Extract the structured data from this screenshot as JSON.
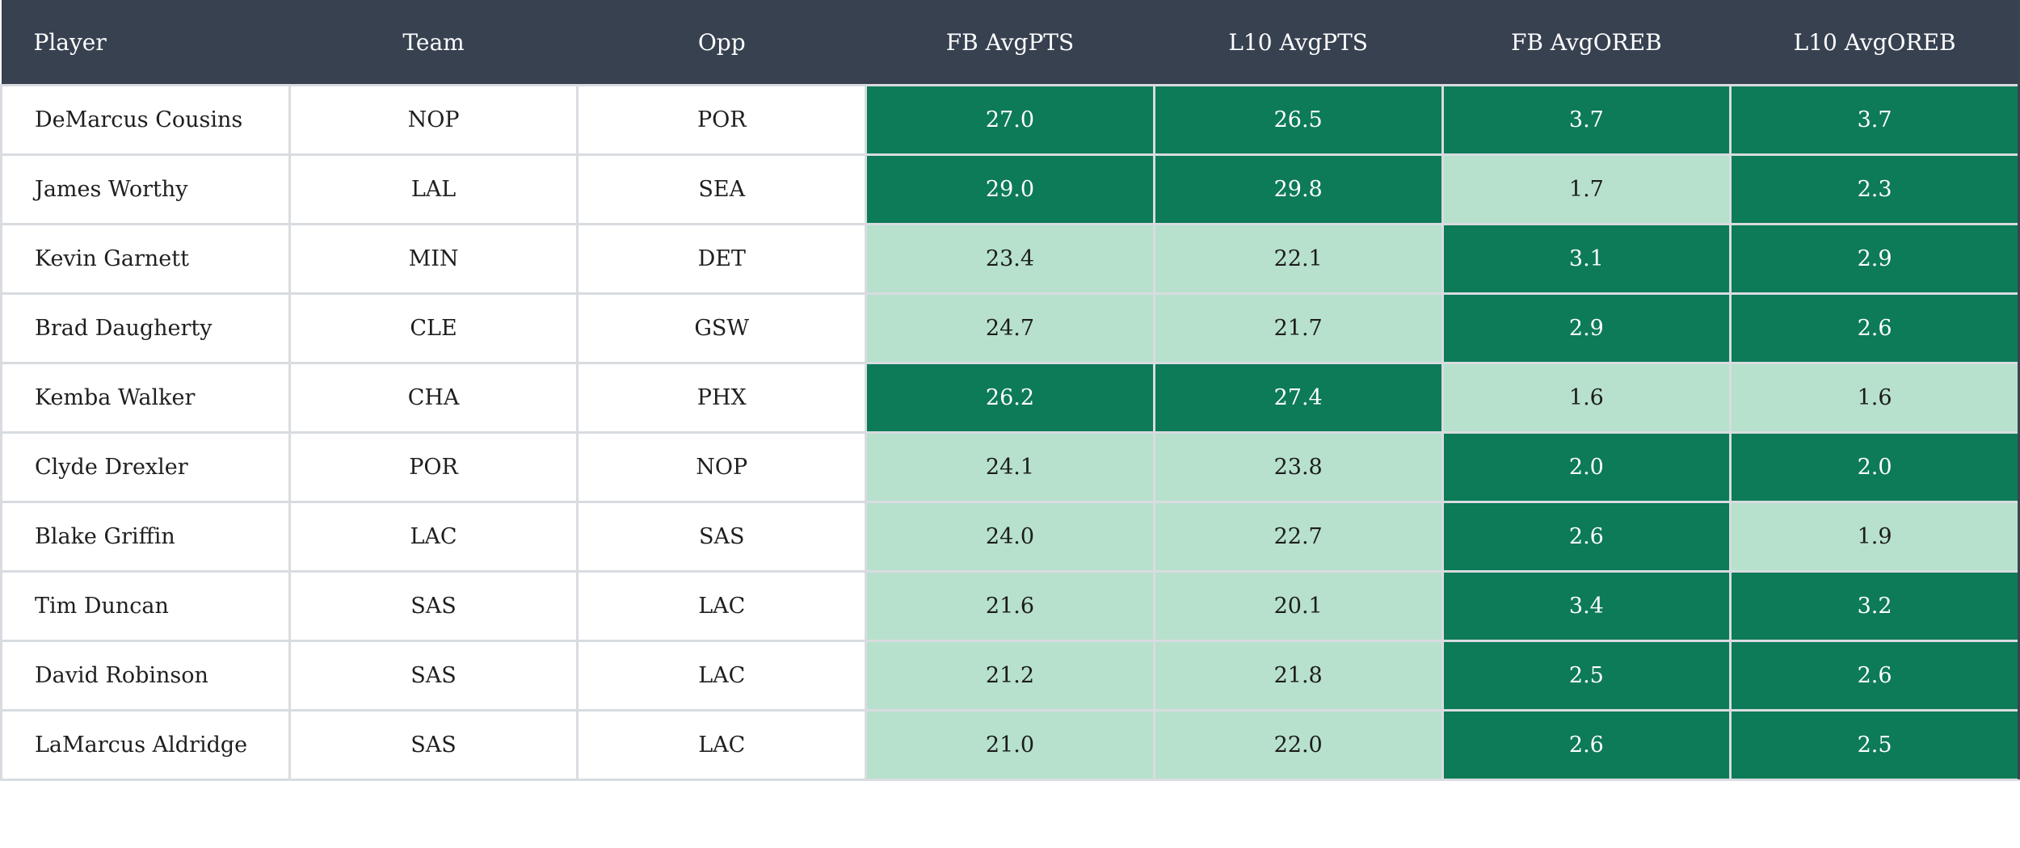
{
  "colors": {
    "header_bg": "#374150",
    "header_text": "#ffffff",
    "stat_high_bg": "#0d7a58",
    "stat_high_text": "#ffffff",
    "stat_low_bg": "#b7e1cd",
    "stat_low_text": "#1c1c1c",
    "cell_border": "#d8dce0",
    "row_bg": "#ffffff"
  },
  "table": {
    "columns": [
      {
        "key": "player",
        "label": "Player",
        "type": "text",
        "align": "left"
      },
      {
        "key": "team",
        "label": "Team",
        "type": "text",
        "align": "center"
      },
      {
        "key": "opp",
        "label": "Opp",
        "type": "text",
        "align": "center"
      },
      {
        "key": "fb_avgpts",
        "label": "FB AvgPTS",
        "type": "stat",
        "align": "center"
      },
      {
        "key": "l10_avgpts",
        "label": "L10 AvgPTS",
        "type": "stat",
        "align": "center"
      },
      {
        "key": "fb_avgoreb",
        "label": "FB AvgOREB",
        "type": "stat",
        "align": "center"
      },
      {
        "key": "l10_avgoreb",
        "label": "L10 AvgOREB",
        "type": "stat",
        "align": "center"
      }
    ],
    "rows": [
      {
        "player": "DeMarcus Cousins",
        "team": "NOP",
        "opp": "POR",
        "fb_avgpts": {
          "value": "27.0",
          "tone": "dark"
        },
        "l10_avgpts": {
          "value": "26.5",
          "tone": "dark"
        },
        "fb_avgoreb": {
          "value": "3.7",
          "tone": "dark"
        },
        "l10_avgoreb": {
          "value": "3.7",
          "tone": "dark"
        }
      },
      {
        "player": "James Worthy",
        "team": "LAL",
        "opp": "SEA",
        "fb_avgpts": {
          "value": "29.0",
          "tone": "dark"
        },
        "l10_avgpts": {
          "value": "29.8",
          "tone": "dark"
        },
        "fb_avgoreb": {
          "value": "1.7",
          "tone": "light"
        },
        "l10_avgoreb": {
          "value": "2.3",
          "tone": "dark"
        }
      },
      {
        "player": "Kevin Garnett",
        "team": "MIN",
        "opp": "DET",
        "fb_avgpts": {
          "value": "23.4",
          "tone": "light"
        },
        "l10_avgpts": {
          "value": "22.1",
          "tone": "light"
        },
        "fb_avgoreb": {
          "value": "3.1",
          "tone": "dark"
        },
        "l10_avgoreb": {
          "value": "2.9",
          "tone": "dark"
        }
      },
      {
        "player": "Brad Daugherty",
        "team": "CLE",
        "opp": "GSW",
        "fb_avgpts": {
          "value": "24.7",
          "tone": "light"
        },
        "l10_avgpts": {
          "value": "21.7",
          "tone": "light"
        },
        "fb_avgoreb": {
          "value": "2.9",
          "tone": "dark"
        },
        "l10_avgoreb": {
          "value": "2.6",
          "tone": "dark"
        }
      },
      {
        "player": "Kemba Walker",
        "team": "CHA",
        "opp": "PHX",
        "fb_avgpts": {
          "value": "26.2",
          "tone": "dark"
        },
        "l10_avgpts": {
          "value": "27.4",
          "tone": "dark"
        },
        "fb_avgoreb": {
          "value": "1.6",
          "tone": "light"
        },
        "l10_avgoreb": {
          "value": "1.6",
          "tone": "light"
        }
      },
      {
        "player": "Clyde Drexler",
        "team": "POR",
        "opp": "NOP",
        "fb_avgpts": {
          "value": "24.1",
          "tone": "light"
        },
        "l10_avgpts": {
          "value": "23.8",
          "tone": "light"
        },
        "fb_avgoreb": {
          "value": "2.0",
          "tone": "dark"
        },
        "l10_avgoreb": {
          "value": "2.0",
          "tone": "dark"
        }
      },
      {
        "player": "Blake Griffin",
        "team": "LAC",
        "opp": "SAS",
        "fb_avgpts": {
          "value": "24.0",
          "tone": "light"
        },
        "l10_avgpts": {
          "value": "22.7",
          "tone": "light"
        },
        "fb_avgoreb": {
          "value": "2.6",
          "tone": "dark"
        },
        "l10_avgoreb": {
          "value": "1.9",
          "tone": "light"
        }
      },
      {
        "player": "Tim Duncan",
        "team": "SAS",
        "opp": "LAC",
        "fb_avgpts": {
          "value": "21.6",
          "tone": "light"
        },
        "l10_avgpts": {
          "value": "20.1",
          "tone": "light"
        },
        "fb_avgoreb": {
          "value": "3.4",
          "tone": "dark"
        },
        "l10_avgoreb": {
          "value": "3.2",
          "tone": "dark"
        }
      },
      {
        "player": "David Robinson",
        "team": "SAS",
        "opp": "LAC",
        "fb_avgpts": {
          "value": "21.2",
          "tone": "light"
        },
        "l10_avgpts": {
          "value": "21.8",
          "tone": "light"
        },
        "fb_avgoreb": {
          "value": "2.5",
          "tone": "dark"
        },
        "l10_avgoreb": {
          "value": "2.6",
          "tone": "dark"
        }
      },
      {
        "player": "LaMarcus Aldridge",
        "team": "SAS",
        "opp": "LAC",
        "fb_avgpts": {
          "value": "21.0",
          "tone": "light"
        },
        "l10_avgpts": {
          "value": "22.0",
          "tone": "light"
        },
        "fb_avgoreb": {
          "value": "2.6",
          "tone": "dark"
        },
        "l10_avgoreb": {
          "value": "2.5",
          "tone": "dark"
        }
      }
    ]
  }
}
